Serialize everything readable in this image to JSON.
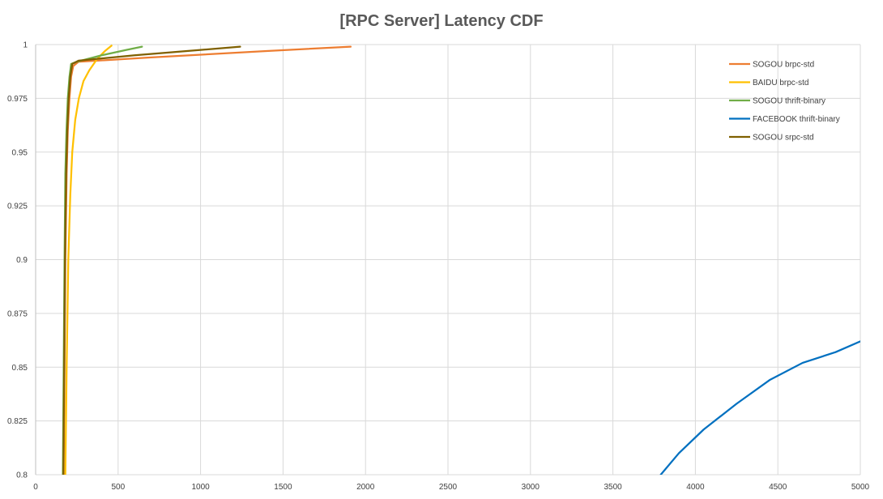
{
  "chart_data": {
    "type": "line",
    "title": "[RPC Server] Latency CDF",
    "xlabel": "",
    "ylabel": "",
    "xlim": [
      0,
      5000
    ],
    "ylim": [
      0.8,
      1
    ],
    "grid": true,
    "legend_position": "top-right",
    "x_ticks": [
      "0",
      "500",
      "1000",
      "1500",
      "2000",
      "2500",
      "3000",
      "3500",
      "4000",
      "4500",
      "5000"
    ],
    "y_ticks": [
      "0.8",
      "0.825",
      "0.85",
      "0.875",
      "0.9",
      "0.925",
      "0.95",
      "0.975",
      "1"
    ],
    "series": [
      {
        "name": "SOGOU brpc-std",
        "color": "#ed7d31",
        "points": [
          [
            170,
            0.8
          ],
          [
            175,
            0.85
          ],
          [
            180,
            0.9
          ],
          [
            188,
            0.94
          ],
          [
            195,
            0.96
          ],
          [
            205,
            0.975
          ],
          [
            215,
            0.985
          ],
          [
            228,
            0.99
          ],
          [
            260,
            0.992
          ],
          [
            700,
            0.994
          ],
          [
            1400,
            0.997
          ],
          [
            1910,
            0.999
          ]
        ]
      },
      {
        "name": "BAIDU brpc-std",
        "color": "#ffc000",
        "points": [
          [
            180,
            0.8
          ],
          [
            188,
            0.85
          ],
          [
            198,
            0.9
          ],
          [
            210,
            0.93
          ],
          [
            222,
            0.95
          ],
          [
            240,
            0.965
          ],
          [
            262,
            0.975
          ],
          [
            290,
            0.983
          ],
          [
            325,
            0.988
          ],
          [
            370,
            0.993
          ],
          [
            420,
            0.997
          ],
          [
            460,
            0.9995
          ]
        ]
      },
      {
        "name": "SOGOU thrift-binary",
        "color": "#70ad47",
        "points": [
          [
            165,
            0.8
          ],
          [
            170,
            0.85
          ],
          [
            175,
            0.9
          ],
          [
            180,
            0.94
          ],
          [
            187,
            0.96
          ],
          [
            195,
            0.975
          ],
          [
            205,
            0.985
          ],
          [
            215,
            0.991
          ],
          [
            250,
            0.992
          ],
          [
            400,
            0.995
          ],
          [
            550,
            0.9975
          ],
          [
            645,
            0.999
          ]
        ]
      },
      {
        "name": "FACEBOOK thrift-binary",
        "color": "#0070c0",
        "points": [
          [
            3790,
            0.8
          ],
          [
            3900,
            0.81
          ],
          [
            4050,
            0.821
          ],
          [
            4250,
            0.833
          ],
          [
            4450,
            0.844
          ],
          [
            4650,
            0.852
          ],
          [
            4850,
            0.857
          ],
          [
            5000,
            0.862
          ]
        ]
      },
      {
        "name": "SOGOU srpc-std",
        "color": "#7f6000",
        "points": [
          [
            168,
            0.8
          ],
          [
            173,
            0.85
          ],
          [
            178,
            0.9
          ],
          [
            185,
            0.94
          ],
          [
            192,
            0.96
          ],
          [
            200,
            0.975
          ],
          [
            210,
            0.985
          ],
          [
            222,
            0.991
          ],
          [
            260,
            0.9925
          ],
          [
            600,
            0.995
          ],
          [
            1000,
            0.9975
          ],
          [
            1240,
            0.999
          ]
        ]
      }
    ]
  }
}
